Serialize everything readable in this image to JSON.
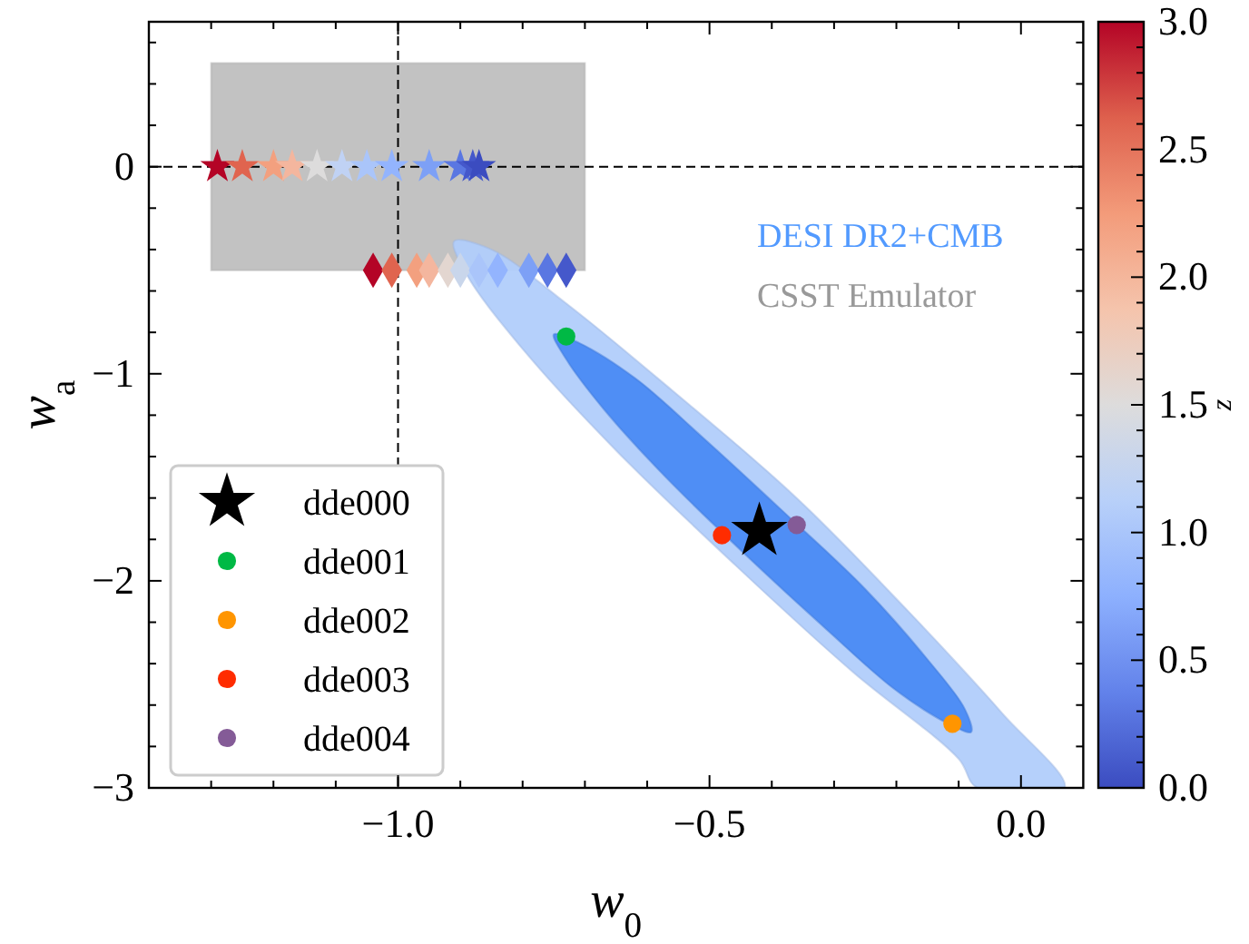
{
  "chart_data": {
    "type": "scatter",
    "xlabel": "w$_{0}$",
    "ylabel": "w$_{a}$",
    "clabel": "z",
    "xlim": [
      -1.4,
      0.1
    ],
    "ylim": [
      -3,
      0.7
    ],
    "xticks": [
      {
        "value": -1.3,
        "label": null
      },
      {
        "value": -1.2,
        "label": null
      },
      {
        "value": -1.1,
        "label": null
      },
      {
        "value": -1,
        "label": "−1.0"
      },
      {
        "value": -0.9,
        "label": null
      },
      {
        "value": -0.8,
        "label": null
      },
      {
        "value": -0.7,
        "label": null
      },
      {
        "value": -0.6,
        "label": null
      },
      {
        "value": -0.5,
        "label": "−0.5"
      },
      {
        "value": -0.4,
        "label": null
      },
      {
        "value": -0.3,
        "label": null
      },
      {
        "value": -0.2,
        "label": null
      },
      {
        "value": -0.1,
        "label": null
      },
      {
        "value": 0,
        "label": "0.0"
      }
    ],
    "yticks": [
      {
        "value": 0.6,
        "label": null
      },
      {
        "value": 0.4,
        "label": null
      },
      {
        "value": 0.2,
        "label": null
      },
      0,
      {
        "value": -0.2,
        "label": null
      },
      {
        "value": -0.4,
        "label": null
      },
      {
        "value": -0.6,
        "label": null
      },
      {
        "value": -0.8,
        "label": null
      },
      {
        "value": -1,
        "label": "−1"
      },
      {
        "value": -1.2,
        "label": null
      },
      {
        "value": -1.4,
        "label": null
      },
      {
        "value": -1.6,
        "label": null
      },
      {
        "value": -1.8,
        "label": null
      },
      {
        "value": -2,
        "label": "−2"
      },
      {
        "value": -2.2,
        "label": null
      },
      {
        "value": -2.4,
        "label": null
      },
      {
        "value": -2.6,
        "label": null
      },
      {
        "value": -2.8,
        "label": null
      },
      {
        "value": -3,
        "label": "−3"
      }
    ],
    "clim": [
      0,
      3
    ],
    "cticks": [
      {
        "value": 0,
        "label": "0.0"
      },
      {
        "value": 0.1,
        "label": null
      },
      {
        "value": 0.2,
        "label": null
      },
      {
        "value": 0.3,
        "label": null
      },
      {
        "value": 0.4,
        "label": null
      },
      {
        "value": 0.5,
        "label": "0.5"
      },
      {
        "value": 0.6,
        "label": null
      },
      {
        "value": 0.7,
        "label": null
      },
      {
        "value": 0.8,
        "label": null
      },
      {
        "value": 0.9,
        "label": null
      },
      {
        "value": 1,
        "label": "1.0"
      },
      {
        "value": 1.1,
        "label": null
      },
      {
        "value": 1.2,
        "label": null
      },
      {
        "value": 1.3,
        "label": null
      },
      {
        "value": 1.4,
        "label": null
      },
      {
        "value": 1.5,
        "label": "1.5"
      },
      {
        "value": 1.6,
        "label": null
      },
      {
        "value": 1.7,
        "label": null
      },
      {
        "value": 1.8,
        "label": null
      },
      {
        "value": 1.9,
        "label": null
      },
      {
        "value": 2,
        "label": "2.0"
      },
      {
        "value": 2.1,
        "label": null
      },
      {
        "value": 2.2,
        "label": null
      },
      {
        "value": 2.3,
        "label": null
      },
      {
        "value": 2.4,
        "label": null
      },
      {
        "value": 2.5,
        "label": "2.5"
      },
      {
        "value": 2.6,
        "label": null
      },
      {
        "value": 2.7,
        "label": null
      },
      {
        "value": 2.8,
        "label": null
      },
      {
        "value": 2.9,
        "label": null
      },
      {
        "value": 3,
        "label": "3.0"
      }
    ],
    "ref_lines": [
      {
        "axis": "x",
        "value": -1,
        "color": "#000000",
        "line_style": "dashed"
      },
      {
        "axis": "y",
        "value": 0,
        "color": "#000000",
        "line_style": "dashed"
      }
    ],
    "legend": "lower left",
    "series": [
      {
        "type": "area",
        "name": "CSST Emulator",
        "color": "#bfbfbf",
        "x": [
          -1.3,
          -0.7,
          -0.7,
          -1.3
        ],
        "values": [
          0.5,
          0.5,
          -0.5,
          -0.5
        ]
      },
      {
        "type": "area",
        "color": "#b1cdfb",
        "x": [
          0.07,
          -0.07,
          -0.1,
          -0.27,
          -0.46,
          -0.65,
          -0.8,
          -0.89,
          -0.91,
          -0.85,
          -0.73,
          -0.56,
          -0.36,
          -0.18,
          -0.03
        ],
        "values": [
          -3,
          -3,
          -2.86,
          -2.44,
          -1.92,
          -1.37,
          -0.88,
          -0.52,
          -0.36,
          -0.4,
          -0.66,
          -1.08,
          -1.6,
          -2.15,
          -2.64
        ]
      },
      {
        "type": "area",
        "name": "DESI DR2+CMB",
        "color": "#4a8af4",
        "x": [
          -0.08,
          -0.11,
          -0.2,
          -0.31,
          -0.44,
          -0.57,
          -0.67,
          -0.73,
          -0.75,
          -0.71,
          -0.62,
          -0.51,
          -0.38,
          -0.25,
          -0.15,
          -0.09
        ],
        "values": [
          -2.73,
          -2.7,
          -2.53,
          -2.24,
          -1.88,
          -1.5,
          -1.17,
          -0.93,
          -0.81,
          -0.85,
          -1.02,
          -1.31,
          -1.67,
          -2.04,
          -2.38,
          -2.62
        ]
      },
      {
        "marker": "star",
        "x": [
          -1.29,
          -1.25,
          -1.2,
          -1.17,
          -1.13,
          -1.09,
          -1.05,
          -1.01,
          -0.95,
          -0.9,
          -0.88,
          -0.87
        ],
        "values": [
          0,
          0,
          0,
          0,
          0,
          0,
          0,
          0,
          0,
          0,
          0,
          0
        ],
        "colors": [
          "#b40426",
          "#e0644f",
          "#f3a07f",
          "#f4b69e",
          "#dddcdc",
          "#c0d2f4",
          "#aac5fa",
          "#93b4fe",
          "#7da0f6",
          "#5a77e2",
          "#4558cb",
          "#3b4cc0"
        ]
      },
      {
        "marker": "diamond",
        "x": [
          -1.04,
          -1.01,
          -0.97,
          -0.95,
          -0.92,
          -0.9,
          -0.87,
          -0.84,
          -0.79,
          -0.76,
          -0.73
        ],
        "values": [
          -0.5,
          -0.5,
          -0.5,
          -0.5,
          -0.5,
          -0.5,
          -0.5,
          -0.5,
          -0.5,
          -0.5,
          -0.5
        ],
        "colors": [
          "#b40426",
          "#e0644f",
          "#f3a07f",
          "#f4b69e",
          "#e3d6d0",
          "#c9d6eb",
          "#aac5fa",
          "#93b4fe",
          "#7da0f6",
          "#5a77e2",
          "#4558cb"
        ]
      },
      {
        "marker": "star",
        "name": "dde000",
        "color": "#000000",
        "x": [
          -0.42
        ],
        "values": [
          -1.76
        ]
      },
      {
        "marker": "circle",
        "name": "dde001",
        "color": "#00b945",
        "x": [
          -0.73
        ],
        "values": [
          -0.82
        ]
      },
      {
        "marker": "circle",
        "name": "dde002",
        "color": "#ff9500",
        "x": [
          -0.11
        ],
        "values": [
          -2.69
        ]
      },
      {
        "marker": "circle",
        "name": "dde003",
        "color": "#ff2c00",
        "x": [
          -0.48
        ],
        "values": [
          -1.78
        ]
      },
      {
        "marker": "circle",
        "name": "dde004",
        "color": "#845b97",
        "x": [
          -0.36
        ],
        "values": [
          -1.73
        ]
      }
    ]
  }
}
